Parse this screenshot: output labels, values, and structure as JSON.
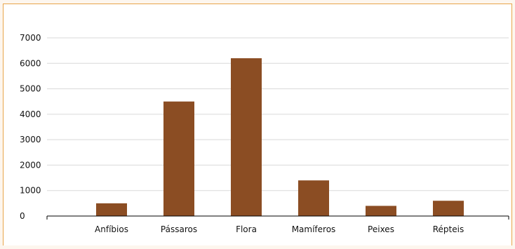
{
  "chart_data": {
    "type": "bar",
    "categories": [
      "Anfíbios",
      "Pássaros",
      "Flora",
      "Mamíferos",
      "Peixes",
      "Répteis"
    ],
    "values": [
      500,
      4500,
      6200,
      1400,
      400,
      600
    ],
    "ylim": [
      0,
      7000
    ],
    "yticks": [
      "0",
      "1000",
      "2000",
      "3000",
      "4000",
      "5000",
      "6000",
      "7000"
    ],
    "title": "",
    "xlabel": "",
    "ylabel": "",
    "grid": true,
    "legend": "none",
    "colors": {
      "bar": "#8b4d23",
      "grid": "#d9d9d9",
      "axis": "#000000",
      "frame": "#e9a54a",
      "background": "#fdf6ee"
    }
  }
}
